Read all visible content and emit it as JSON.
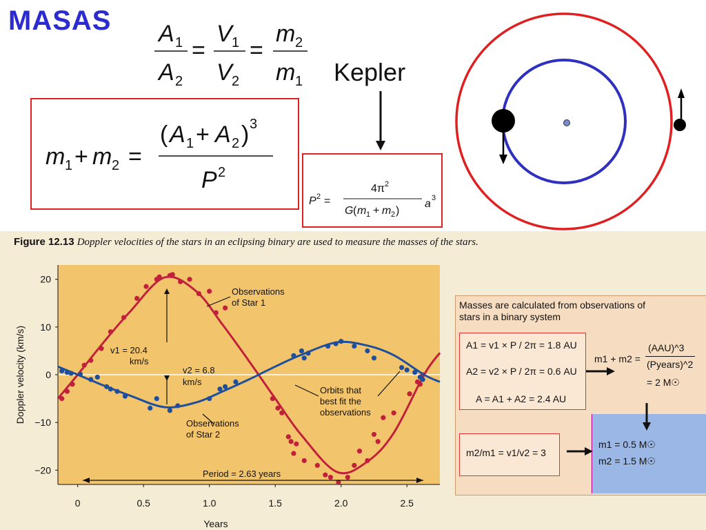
{
  "slide": {
    "title": "MASAS",
    "kepler_label": "Kepler",
    "ratio_formula": "A1/A2 = V1/V2 = m2/m1",
    "mass_formula": "m1 + m2 = (A1 + A2)^3 / P^2",
    "kepler_formula": "P^2 = 4π^2 / G(m1 + m2) a^3"
  },
  "orbit_diagram": {
    "outer_orbit_color": "#e02020",
    "inner_orbit_color": "#3030c0",
    "center_color": "#7a8ad0"
  },
  "figure": {
    "caption_label": "Figure 12.13",
    "caption_text": "Doppler velocities of the stars in an eclipsing binary are used to measure the masses of the stars.",
    "annotations": {
      "obs_star1": [
        "Observations",
        "of Star 1"
      ],
      "obs_star2": [
        "Observations",
        "of Star 2"
      ],
      "orbits_fit": [
        "Orbits that",
        "best fit the",
        "observations"
      ],
      "v1": [
        "v1 = 20.4",
        "km/s"
      ],
      "v2": [
        "v2 = 6.8",
        "km/s"
      ],
      "period": "Period = 2.63 years"
    },
    "mass_panel": {
      "title": "Masses are calculated from observations of stars in a binary system",
      "a1": "A1 = v1 × P / 2π = 1.8 AU",
      "a2": "A2 = v2 × P / 2π = 0.6 AU",
      "a_total": "A = A1 + A2 = 2.4 AU",
      "sum_mass_lhs": "m1 + m2 =",
      "sum_mass_num": "(AAU)^3",
      "sum_mass_den": "(Pyears)^2",
      "sum_mass_result": "= 2 M☉",
      "ratio": "m2/m1 = v1/v2 = 3",
      "m1": "m1 = 0.5 M☉",
      "m2": "m2 = 1.5 M☉"
    }
  },
  "chart_data": {
    "type": "line",
    "title": "",
    "xlabel": "Years",
    "ylabel": "Doppler velocity (km/s)",
    "xlim": [
      -0.15,
      2.75
    ],
    "ylim": [
      -23,
      23
    ],
    "xticks": [
      0,
      0.5,
      1.0,
      1.5,
      2.0,
      2.5
    ],
    "xtick_labels": [
      "0",
      "0.5",
      "1.0",
      "1.5",
      "2.0",
      "2.5"
    ],
    "yticks": [
      20,
      10,
      0,
      -10,
      -20
    ],
    "yticks_labels": [
      "20",
      "10",
      "0",
      "−10",
      "−20"
    ],
    "period": 2.63,
    "series": [
      {
        "name": "Star 1",
        "color": "#c0203a",
        "amplitude": 20.4,
        "curve": {
          "x": [
            -0.15,
            0,
            0.2,
            0.4,
            0.66,
            0.9,
            1.1,
            1.3,
            1.5,
            1.7,
            1.97,
            2.2,
            2.4,
            2.63,
            2.75
          ],
          "y": [
            -5.0,
            0.0,
            6.9,
            13.3,
            20.4,
            17.5,
            10.5,
            2.9,
            -5.0,
            -12.7,
            -20.4,
            -18.2,
            -12.2,
            0.0,
            4.6
          ]
        },
        "points": {
          "x": [
            -0.12,
            -0.08,
            -0.04,
            0.05,
            0.1,
            0.18,
            0.25,
            0.35,
            0.45,
            0.52,
            0.6,
            0.62,
            0.7,
            0.72,
            0.78,
            0.85,
            0.92,
            1.0,
            1.05,
            1.12,
            1.48,
            1.52,
            1.55,
            1.6,
            1.62,
            1.64,
            1.66,
            1.72,
            1.82,
            1.88,
            1.92,
            1.98,
            2.05,
            2.1,
            2.14,
            2.2,
            2.25,
            2.28,
            2.32,
            2.4,
            2.52,
            2.58,
            2.6,
            2.62
          ],
          "y": [
            -5,
            -3.5,
            -2,
            2,
            3,
            5.5,
            9,
            12,
            16,
            18.5,
            20,
            20.5,
            20.8,
            21,
            19.5,
            20,
            17,
            17.5,
            13,
            14,
            -5,
            -7,
            -8,
            -13,
            -14,
            -16.5,
            -14.5,
            -18,
            -19,
            -21,
            -21.5,
            -22.5,
            -21.5,
            -19,
            -16,
            -18,
            -12.5,
            -14,
            -9,
            -8,
            -4,
            -1.5,
            -2,
            0
          ]
        }
      },
      {
        "name": "Star 2",
        "color": "#1f4f9a",
        "amplitude": 6.8,
        "curve": {
          "x": [
            -0.15,
            0,
            0.2,
            0.4,
            0.66,
            0.9,
            1.1,
            1.3,
            1.5,
            1.7,
            1.97,
            2.2,
            2.4,
            2.63,
            2.75
          ],
          "y": [
            1.7,
            0.0,
            -2.3,
            -4.4,
            -6.8,
            -5.8,
            -3.5,
            -1.0,
            1.7,
            4.2,
            6.8,
            6.1,
            4.1,
            0.0,
            -1.5
          ]
        },
        "points": {
          "x": [
            -0.12,
            -0.08,
            -0.05,
            0.02,
            0.1,
            0.15,
            0.22,
            0.25,
            0.3,
            0.36,
            0.55,
            0.6,
            0.7,
            0.76,
            1.0,
            1.08,
            1.12,
            1.2,
            1.64,
            1.7,
            1.72,
            1.75,
            1.9,
            1.96,
            2.0,
            2.1,
            2.2,
            2.25,
            2.46,
            2.5,
            2.56,
            2.6,
            2.62
          ],
          "y": [
            0.8,
            0.5,
            0.3,
            0.1,
            -1,
            -0.5,
            -2.5,
            -3,
            -3.5,
            -4.5,
            -7,
            -5,
            -7.5,
            -6.5,
            -5,
            -3,
            -2.5,
            -1.5,
            4,
            5,
            3.5,
            4.5,
            6,
            6.5,
            7,
            6,
            5,
            3.5,
            1.5,
            1,
            0.5,
            -0.5,
            -1
          ]
        }
      }
    ],
    "grid": false,
    "legend": "none"
  }
}
